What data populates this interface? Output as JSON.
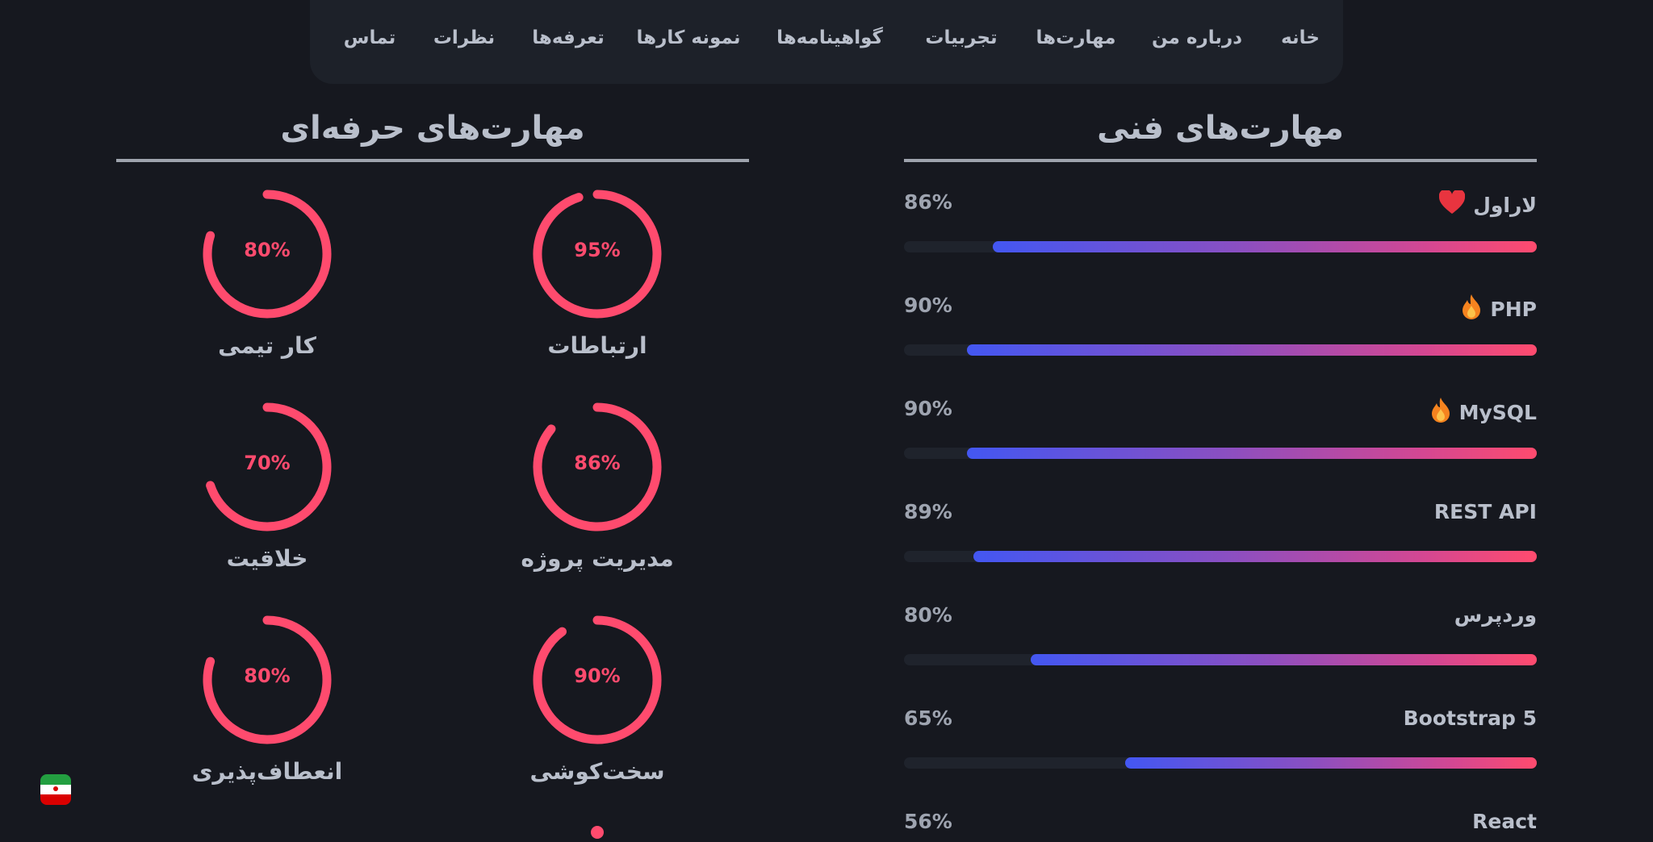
{
  "nav": {
    "items": [
      {
        "label": "خانه"
      },
      {
        "label": "درباره من"
      },
      {
        "label": "مهارت‌ها"
      },
      {
        "label": "تجربیات"
      },
      {
        "label": "گواهینامه‌ها"
      },
      {
        "label": "نمونه کارها"
      },
      {
        "label": "تعرفه‌ها"
      },
      {
        "label": "نظرات"
      },
      {
        "label": "تماس"
      }
    ]
  },
  "technical": {
    "title": "مهارت‌های فنی",
    "skills": [
      {
        "name": "لاراول",
        "percent_text": "86%",
        "value": 86,
        "icon": "heart-icon"
      },
      {
        "name": "PHP",
        "percent_text": "90%",
        "value": 90,
        "icon": "fire-icon"
      },
      {
        "name": "MySQL",
        "percent_text": "90%",
        "value": 90,
        "icon": "fire-icon"
      },
      {
        "name": "REST API",
        "percent_text": "89%",
        "value": 89,
        "icon": ""
      },
      {
        "name": "وردپرس",
        "percent_text": "80%",
        "value": 80,
        "icon": ""
      },
      {
        "name": "Bootstrap 5",
        "percent_text": "65%",
        "value": 65,
        "icon": ""
      },
      {
        "name": "React",
        "percent_text": "56%",
        "value": 56,
        "icon": ""
      }
    ]
  },
  "professional": {
    "title": "مهارت‌های حرفه‌ای",
    "skills": [
      {
        "name": "ارتباطات",
        "percent_text": "95%",
        "value": 95
      },
      {
        "name": "کار تیمی",
        "percent_text": "80%",
        "value": 80
      },
      {
        "name": "مدیریت پروژه",
        "percent_text": "86%",
        "value": 86
      },
      {
        "name": "خلاقیت",
        "percent_text": "70%",
        "value": 70
      },
      {
        "name": "سخت‌کوشی",
        "percent_text": "90%",
        "value": 90
      },
      {
        "name": "انعطاف‌پذیری",
        "percent_text": "80%",
        "value": 80
      }
    ]
  },
  "language_flag": {
    "icon": "iran-flag-icon"
  },
  "colors": {
    "background": "#16181f",
    "accent": "#ff4b6e",
    "gradient_start": "#4357f2",
    "text": "#b9bfcb"
  }
}
